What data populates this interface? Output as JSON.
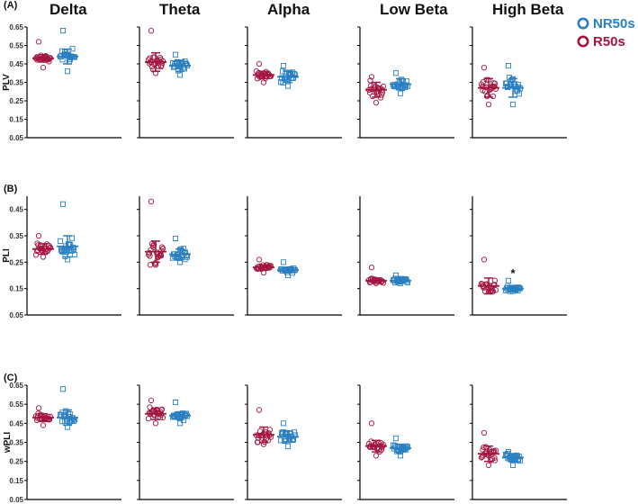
{
  "chart_data": {
    "type": "scatter",
    "subtype": "dot-plot-with-mean-sd",
    "bands": [
      "Delta",
      "Theta",
      "Alpha",
      "Low Beta",
      "High Beta"
    ],
    "legend": [
      {
        "name": "NR50s",
        "color": "#2a7fc0",
        "marker": "square"
      },
      {
        "name": "R50s",
        "color": "#a3153f",
        "marker": "circle"
      }
    ],
    "rows": [
      {
        "panel_label": "(A)",
        "ylabel": "PLV",
        "ylim": [
          0.05,
          0.65
        ],
        "yticks": [
          "0.65",
          "0.55",
          "0.45",
          "0.35",
          "0.25",
          "0.15",
          "0.05"
        ],
        "groups": [
          {
            "band": "Delta",
            "R50s": {
              "mean": 0.48,
              "sd": 0.02,
              "min": 0.43,
              "max": 0.57,
              "n": 24
            },
            "NR50s": {
              "mean": 0.49,
              "sd": 0.04,
              "min": 0.41,
              "max": 0.63,
              "n": 22
            }
          },
          {
            "band": "Theta",
            "R50s": {
              "mean": 0.46,
              "sd": 0.05,
              "min": 0.4,
              "max": 0.63,
              "n": 24
            },
            "NR50s": {
              "mean": 0.44,
              "sd": 0.03,
              "min": 0.39,
              "max": 0.5,
              "n": 22
            }
          },
          {
            "band": "Alpha",
            "R50s": {
              "mean": 0.39,
              "sd": 0.02,
              "min": 0.35,
              "max": 0.45,
              "n": 24
            },
            "NR50s": {
              "mean": 0.38,
              "sd": 0.03,
              "min": 0.33,
              "max": 0.44,
              "n": 22
            }
          },
          {
            "band": "Low Beta",
            "R50s": {
              "mean": 0.31,
              "sd": 0.04,
              "min": 0.24,
              "max": 0.38,
              "n": 24
            },
            "NR50s": {
              "mean": 0.34,
              "sd": 0.03,
              "min": 0.29,
              "max": 0.4,
              "n": 22
            }
          },
          {
            "band": "High Beta",
            "R50s": {
              "mean": 0.32,
              "sd": 0.05,
              "min": 0.23,
              "max": 0.43,
              "n": 24
            },
            "NR50s": {
              "mean": 0.32,
              "sd": 0.05,
              "min": 0.23,
              "max": 0.44,
              "n": 22
            }
          }
        ]
      },
      {
        "panel_label": "(B)",
        "ylabel": "PLI",
        "ylim": [
          0.05,
          0.5
        ],
        "yticks": [
          "0.45",
          "0.35",
          "0.25",
          "0.15",
          "0.05"
        ],
        "groups": [
          {
            "band": "Delta",
            "R50s": {
              "mean": 0.3,
              "sd": 0.02,
              "min": 0.27,
              "max": 0.35,
              "n": 24
            },
            "NR50s": {
              "mean": 0.31,
              "sd": 0.04,
              "min": 0.26,
              "max": 0.47,
              "n": 22
            }
          },
          {
            "band": "Theta",
            "R50s": {
              "mean": 0.29,
              "sd": 0.04,
              "min": 0.24,
              "max": 0.48,
              "n": 24
            },
            "NR50s": {
              "mean": 0.28,
              "sd": 0.02,
              "min": 0.25,
              "max": 0.34,
              "n": 22
            }
          },
          {
            "band": "Alpha",
            "R50s": {
              "mean": 0.23,
              "sd": 0.01,
              "min": 0.21,
              "max": 0.26,
              "n": 24
            },
            "NR50s": {
              "mean": 0.22,
              "sd": 0.01,
              "min": 0.2,
              "max": 0.25,
              "n": 22
            }
          },
          {
            "band": "Low Beta",
            "R50s": {
              "mean": 0.18,
              "sd": 0.01,
              "min": 0.17,
              "max": 0.23,
              "n": 24
            },
            "NR50s": {
              "mean": 0.18,
              "sd": 0.01,
              "min": 0.17,
              "max": 0.2,
              "n": 22
            }
          },
          {
            "band": "High Beta",
            "R50s": {
              "mean": 0.16,
              "sd": 0.03,
              "min": 0.14,
              "max": 0.26,
              "n": 24
            },
            "NR50s": {
              "mean": 0.15,
              "sd": 0.01,
              "min": 0.14,
              "max": 0.18,
              "n": 22
            }
          }
        ],
        "annotations": [
          {
            "band": "High Beta",
            "group": "NR50s",
            "text": "*"
          }
        ]
      },
      {
        "panel_label": "(C)",
        "ylabel": "wPLI",
        "ylim": [
          0.05,
          0.65
        ],
        "yticks": [
          "0.65",
          "0.55",
          "0.45",
          "0.35",
          "0.25",
          "0.15",
          "0.05"
        ],
        "groups": [
          {
            "band": "Delta",
            "R50s": {
              "mean": 0.48,
              "sd": 0.02,
              "min": 0.44,
              "max": 0.53,
              "n": 24
            },
            "NR50s": {
              "mean": 0.48,
              "sd": 0.04,
              "min": 0.43,
              "max": 0.63,
              "n": 22
            }
          },
          {
            "band": "Theta",
            "R50s": {
              "mean": 0.5,
              "sd": 0.03,
              "min": 0.45,
              "max": 0.57,
              "n": 24
            },
            "NR50s": {
              "mean": 0.49,
              "sd": 0.02,
              "min": 0.45,
              "max": 0.56,
              "n": 22
            }
          },
          {
            "band": "Alpha",
            "R50s": {
              "mean": 0.39,
              "sd": 0.04,
              "min": 0.34,
              "max": 0.52,
              "n": 24
            },
            "NR50s": {
              "mean": 0.38,
              "sd": 0.03,
              "min": 0.33,
              "max": 0.45,
              "n": 22
            }
          },
          {
            "band": "Low Beta",
            "R50s": {
              "mean": 0.33,
              "sd": 0.03,
              "min": 0.28,
              "max": 0.45,
              "n": 24
            },
            "NR50s": {
              "mean": 0.32,
              "sd": 0.02,
              "min": 0.28,
              "max": 0.37,
              "n": 22
            }
          },
          {
            "band": "High Beta",
            "R50s": {
              "mean": 0.29,
              "sd": 0.04,
              "min": 0.23,
              "max": 0.4,
              "n": 24
            },
            "NR50s": {
              "mean": 0.27,
              "sd": 0.02,
              "min": 0.23,
              "max": 0.3,
              "n": 22
            }
          }
        ]
      }
    ]
  }
}
